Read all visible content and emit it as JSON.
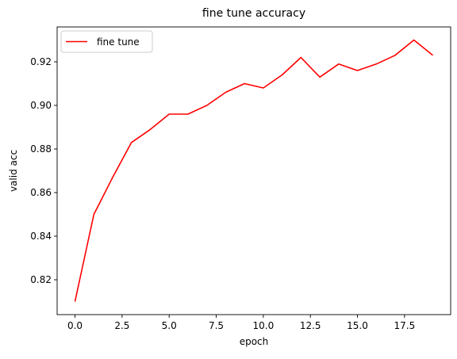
{
  "chart_data": {
    "type": "line",
    "title": "fine tune accuracy",
    "xlabel": "epoch",
    "ylabel": "valid acc",
    "xlim": [
      -0.95,
      19.95
    ],
    "ylim": [
      0.804,
      0.936
    ],
    "xticks": [
      0.0,
      2.5,
      5.0,
      7.5,
      10.0,
      12.5,
      15.0,
      17.5
    ],
    "xtick_labels": [
      "0.0",
      "2.5",
      "5.0",
      "7.5",
      "10.0",
      "12.5",
      "15.0",
      "17.5"
    ],
    "yticks": [
      0.82,
      0.84,
      0.86,
      0.88,
      0.9,
      0.92
    ],
    "ytick_labels": [
      "0.82",
      "0.84",
      "0.86",
      "0.88",
      "0.90",
      "0.92"
    ],
    "grid": false,
    "legend_position": "upper-left",
    "series": [
      {
        "name": "fine tune",
        "color": "#ff0000",
        "x": [
          0,
          1,
          2,
          3,
          4,
          5,
          6,
          7,
          8,
          9,
          10,
          11,
          12,
          13,
          14,
          15,
          16,
          17,
          18,
          19
        ],
        "y": [
          0.81,
          0.85,
          0.867,
          0.883,
          0.889,
          0.896,
          0.896,
          0.9,
          0.906,
          0.91,
          0.908,
          0.914,
          0.922,
          0.913,
          0.919,
          0.916,
          0.919,
          0.923,
          0.93,
          0.923
        ]
      }
    ]
  }
}
